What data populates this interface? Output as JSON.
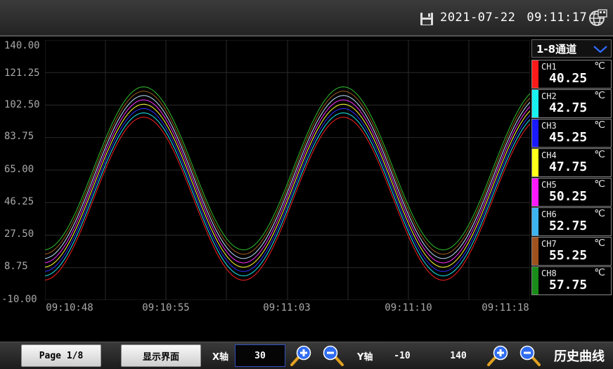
{
  "header": {
    "date": "2021-07-22",
    "time": "09:11:17",
    "save_icon": "save-icon",
    "network_icon": "globe-network-icon"
  },
  "chart_data": {
    "type": "line",
    "title": "",
    "xlabel": "",
    "ylabel": "",
    "ylim": [
      -10,
      140
    ],
    "y_ticks": [
      "140.00",
      "121.25",
      "102.50",
      "83.75",
      "65.00",
      "46.25",
      "27.50",
      "8.75",
      "-10.00"
    ],
    "x_tick_labels": [
      "09:10:48",
      "09:10:55",
      "09:11:03",
      "09:11:10",
      "09:11:18"
    ],
    "grid": true,
    "x_range_seconds": [
      0,
      30
    ],
    "wave_period_seconds": 12.35,
    "series": [
      {
        "name": "CH1",
        "color": "#ff2020",
        "offset": -7.5
      },
      {
        "name": "CH2",
        "color": "#18e8f0",
        "offset": -5.0
      },
      {
        "name": "CH3",
        "color": "#3030ff",
        "offset": -2.5
      },
      {
        "name": "CH4",
        "color": "#ffff30",
        "offset": 0.0
      },
      {
        "name": "CH5",
        "color": "#ff30ff",
        "offset": 2.5
      },
      {
        "name": "CH6",
        "color": "#c0e0ff",
        "offset": 5.0
      },
      {
        "name": "CH7",
        "color": "#a06020",
        "offset": 7.5
      },
      {
        "name": "CH8",
        "color": "#30c030",
        "offset": 10.0
      }
    ]
  },
  "channel_panel": {
    "selector_label": "1-8通道",
    "channels": [
      {
        "name": "CH1",
        "unit": "℃",
        "value": "40.25",
        "color": "#ff1a1a"
      },
      {
        "name": "CH2",
        "unit": "℃",
        "value": "42.75",
        "color": "#19f0f0"
      },
      {
        "name": "CH3",
        "unit": "℃",
        "value": "45.25",
        "color": "#1a1aff"
      },
      {
        "name": "CH4",
        "unit": "℃",
        "value": "47.75",
        "color": "#ffff19"
      },
      {
        "name": "CH5",
        "unit": "℃",
        "value": "50.25",
        "color": "#ff19ff"
      },
      {
        "name": "CH6",
        "unit": "℃",
        "value": "52.75",
        "color": "#3cb4f0"
      },
      {
        "name": "CH7",
        "unit": "℃",
        "value": "55.25",
        "color": "#a0521e"
      },
      {
        "name": "CH8",
        "unit": "℃",
        "value": "57.75",
        "color": "#1a8c1a"
      }
    ]
  },
  "toolbar": {
    "page_label": "Page 1/8",
    "display_label": "显示界面",
    "x_axis_label": "X轴",
    "x_value": "30",
    "y_axis_label": "Y轴",
    "y_min": "-10",
    "y_max": "140",
    "history_label": "历史曲线"
  }
}
